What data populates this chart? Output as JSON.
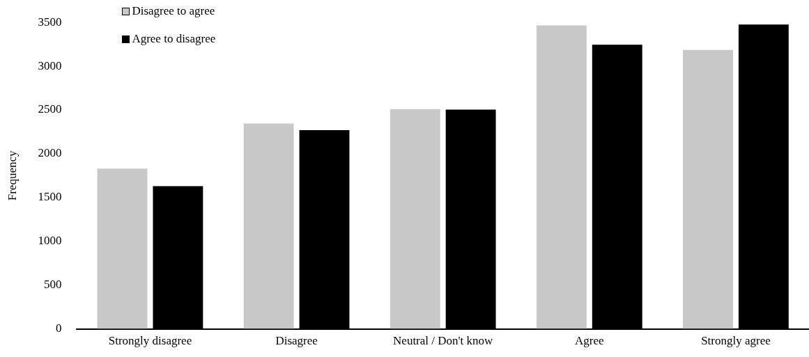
{
  "chart_data": {
    "type": "bar",
    "ylabel": "Frequency",
    "categories": [
      "Strongly disagree",
      "Disagree",
      "Neutral / Don't know",
      "Agree",
      "Strongly agree"
    ],
    "series": [
      {
        "name": "Disagree to agree",
        "color": "#c8c8c8",
        "values": [
          1830,
          2345,
          2510,
          3465,
          3185
        ]
      },
      {
        "name": "Agree to disagree",
        "color": "#000000",
        "values": [
          1630,
          2270,
          2505,
          3245,
          3475
        ]
      }
    ],
    "ylim": [
      0,
      3500
    ],
    "yticks": [
      0,
      500,
      1000,
      1500,
      2000,
      2500,
      3000,
      3500
    ],
    "grid": false,
    "legend": "top left"
  }
}
